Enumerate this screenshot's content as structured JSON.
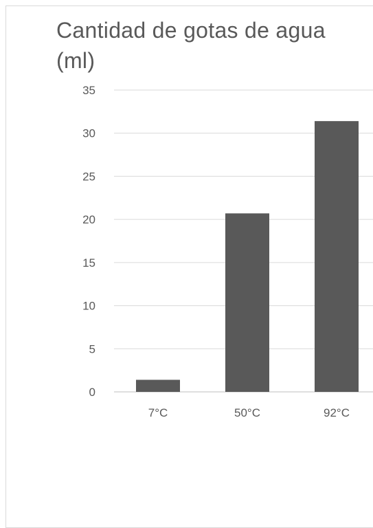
{
  "chart_data": {
    "type": "bar",
    "title": "Cantidad de gotas de agua (ml)",
    "categories": [
      "7°C",
      "50°C",
      "92°C"
    ],
    "values": [
      1.4,
      20.7,
      31.4
    ],
    "ylim": [
      0,
      35
    ],
    "yticks": [
      "0",
      "5",
      "10",
      "15",
      "20",
      "25",
      "30",
      "35"
    ],
    "grid": true,
    "bar_color": "#595959"
  }
}
